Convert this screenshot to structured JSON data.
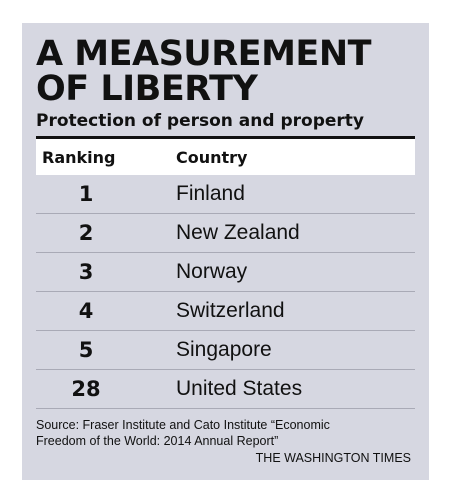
{
  "title": "A MEASUREMENT\nOF LIBERTY",
  "subtitle": "Protection of person and property",
  "source": "Source: Fraser Institute and Cato Institute “Economic Freedom of the World: 2014 Annual Report”",
  "credit": "THE WASHINGTON TIMES",
  "chart_data": {
    "type": "table",
    "title": "A MEASUREMENT OF LIBERTY",
    "subtitle": "Protection of person and property",
    "columns": [
      "Ranking",
      "Country"
    ],
    "rows": [
      {
        "rank": "1",
        "country": "Finland"
      },
      {
        "rank": "2",
        "country": "New Zealand"
      },
      {
        "rank": "3",
        "country": "Norway"
      },
      {
        "rank": "4",
        "country": "Switzerland"
      },
      {
        "rank": "5",
        "country": "Singapore"
      },
      {
        "rank": "28",
        "country": "United States"
      }
    ]
  }
}
